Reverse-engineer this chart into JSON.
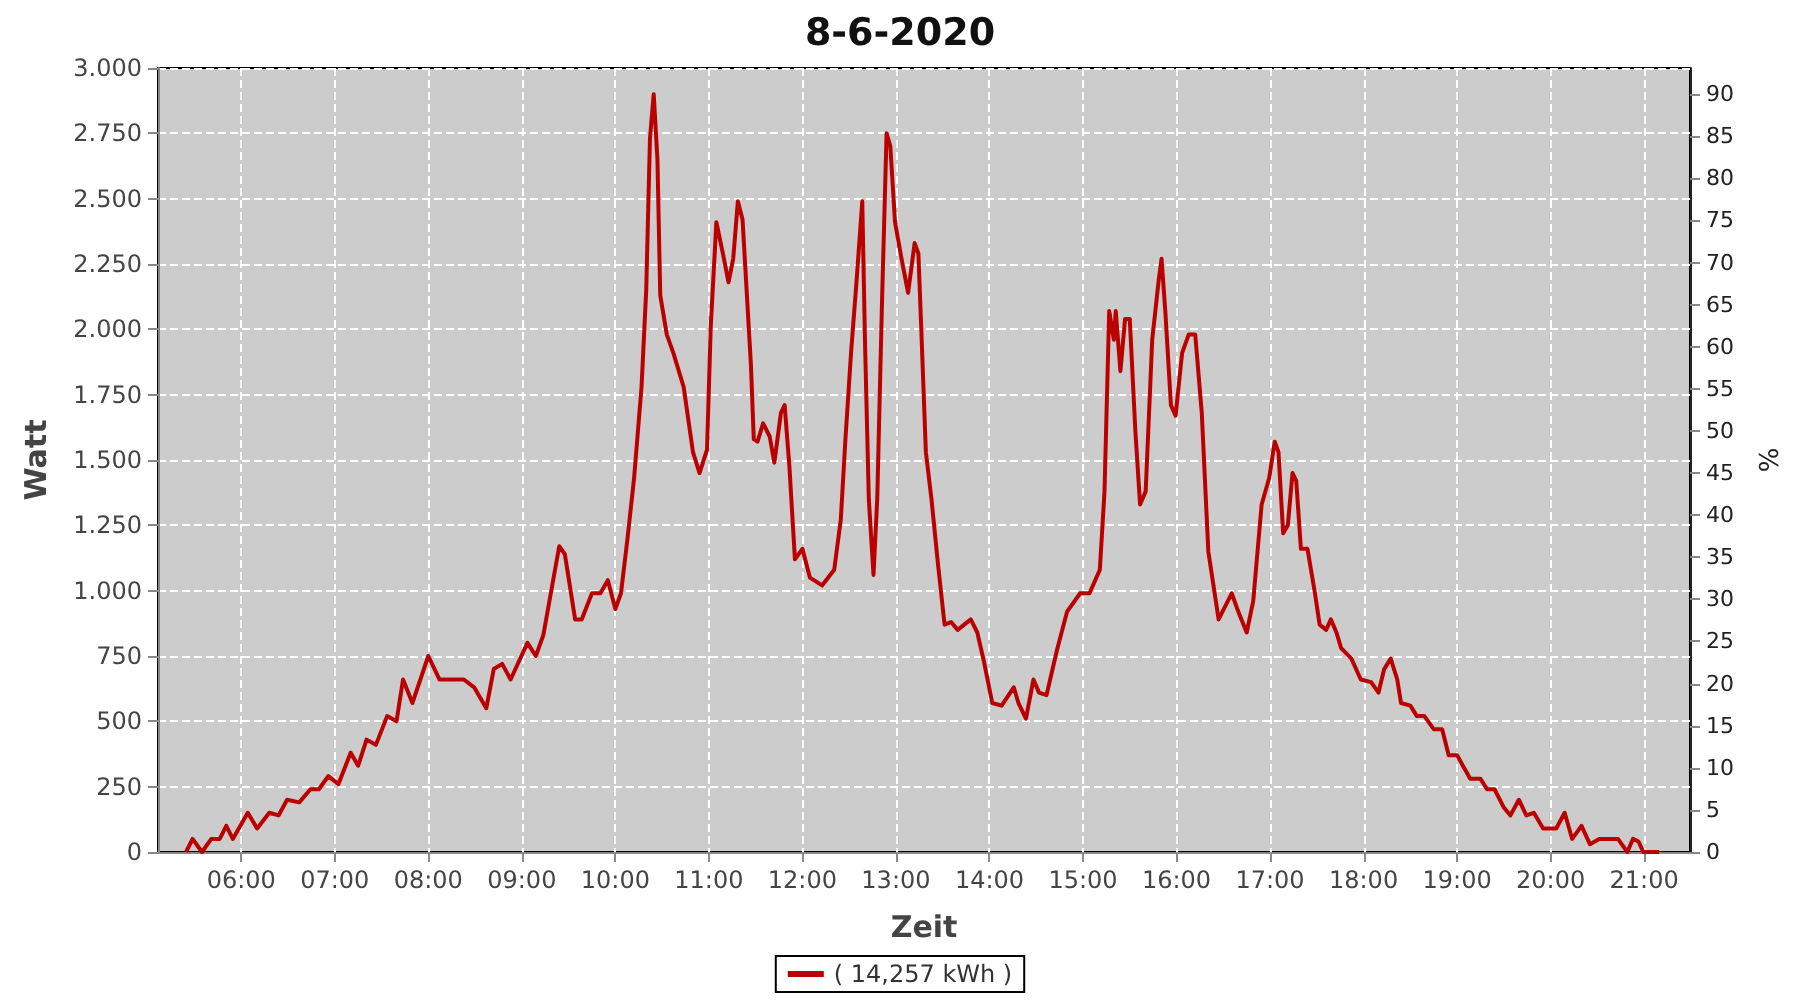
{
  "chart_data": {
    "type": "line",
    "title": "8-6-2020",
    "xlabel": "Zeit",
    "ylabel": "Watt",
    "y2label": "%",
    "xlim": [
      5.11,
      21.49
    ],
    "xticks": [
      {
        "value": 6,
        "label": "06:00"
      },
      {
        "value": 7,
        "label": "07:00"
      },
      {
        "value": 8,
        "label": "08:00"
      },
      {
        "value": 9,
        "label": "09:00"
      },
      {
        "value": 10,
        "label": "10:00"
      },
      {
        "value": 11,
        "label": "11:00"
      },
      {
        "value": 12,
        "label": "12:00"
      },
      {
        "value": 13,
        "label": "13:00"
      },
      {
        "value": 14,
        "label": "14:00"
      },
      {
        "value": 15,
        "label": "15:00"
      },
      {
        "value": 16,
        "label": "16:00"
      },
      {
        "value": 17,
        "label": "17:00"
      },
      {
        "value": 18,
        "label": "18:00"
      },
      {
        "value": 19,
        "label": "19:00"
      },
      {
        "value": 20,
        "label": "20:00"
      },
      {
        "value": 21,
        "label": "21:00"
      }
    ],
    "ylim": [
      0,
      3000
    ],
    "yticks": [
      0,
      250,
      500,
      750,
      {
        "value": 1000,
        "label": "1.000"
      },
      {
        "value": 1250,
        "label": "1.250"
      },
      {
        "value": 1500,
        "label": "1.500"
      },
      {
        "value": 1750,
        "label": "1.750"
      },
      {
        "value": 2000,
        "label": "2.000"
      },
      {
        "value": 2250,
        "label": "2.250"
      },
      {
        "value": 2500,
        "label": "2.500"
      },
      {
        "value": 2750,
        "label": "2.750"
      },
      {
        "value": 3000,
        "label": "3.000"
      }
    ],
    "y2lim": [
      0,
      93.1
    ],
    "y2ticks": [
      0,
      5,
      10,
      15,
      20,
      25,
      30,
      35,
      40,
      45,
      50,
      55,
      60,
      65,
      70,
      75,
      80,
      85,
      90
    ],
    "grid": true,
    "legend": "bottom",
    "marker": "none",
    "line_style": "solid",
    "series": [
      {
        "name": "( 14,257 kWh )",
        "color": "#bb0000",
        "x": [
          5.41,
          5.48,
          5.58,
          5.68,
          5.77,
          5.84,
          5.91,
          6.07,
          6.17,
          6.3,
          6.4,
          6.49,
          6.62,
          6.74,
          6.83,
          6.93,
          7.04,
          7.17,
          7.25,
          7.34,
          7.44,
          7.56,
          7.66,
          7.73,
          7.83,
          8.0,
          8.12,
          8.38,
          8.49,
          8.62,
          8.7,
          8.79,
          8.88,
          9.06,
          9.15,
          9.23,
          9.4,
          9.46,
          9.57,
          9.64,
          9.75,
          9.84,
          9.92,
          10.0,
          10.06,
          10.13,
          10.2,
          10.28,
          10.33,
          10.37,
          10.41,
          10.45,
          10.48,
          10.55,
          10.62,
          10.73,
          10.83,
          10.9,
          10.98,
          11.02,
          11.08,
          11.15,
          11.21,
          11.26,
          11.31,
          11.36,
          11.45,
          11.48,
          11.52,
          11.58,
          11.65,
          11.7,
          11.77,
          11.81,
          11.86,
          11.92,
          12.0,
          12.08,
          12.21,
          12.34,
          12.41,
          12.46,
          12.52,
          12.58,
          12.64,
          12.67,
          12.71,
          12.76,
          12.8,
          12.85,
          12.9,
          12.94,
          12.99,
          13.06,
          13.13,
          13.2,
          13.24,
          13.27,
          13.32,
          13.38,
          13.45,
          13.52,
          13.59,
          13.66,
          13.73,
          13.8,
          13.87,
          13.94,
          14.03,
          14.13,
          14.26,
          14.31,
          14.39,
          14.47,
          14.53,
          14.61,
          14.72,
          14.83,
          14.97,
          15.07,
          15.18,
          15.23,
          15.28,
          15.33,
          15.35,
          15.4,
          15.45,
          15.5,
          15.56,
          15.61,
          15.67,
          15.74,
          15.81,
          15.84,
          15.88,
          15.94,
          15.99,
          16.06,
          16.13,
          16.2,
          16.27,
          16.34,
          16.45,
          16.52,
          16.59,
          16.66,
          16.75,
          16.82,
          16.91,
          16.99,
          17.05,
          17.09,
          17.14,
          17.19,
          17.24,
          17.28,
          17.33,
          17.4,
          17.48,
          17.53,
          17.6,
          17.65,
          17.71,
          17.76,
          17.87,
          17.97,
          18.08,
          18.16,
          18.22,
          18.29,
          18.36,
          18.4,
          18.5,
          18.57,
          18.65,
          18.75,
          18.84,
          18.91,
          19.0,
          19.14,
          19.25,
          19.32,
          19.4,
          19.5,
          19.57,
          19.66,
          19.74,
          19.82,
          19.92,
          20.06,
          20.15,
          20.23,
          20.33,
          20.42,
          20.52,
          20.72,
          20.82,
          20.88,
          20.94,
          20.99,
          21.16
        ],
        "values": [
          0,
          50,
          0,
          50,
          50,
          100,
          50,
          150,
          90,
          150,
          140,
          200,
          190,
          240,
          240,
          290,
          260,
          380,
          330,
          430,
          410,
          520,
          500,
          660,
          570,
          750,
          660,
          660,
          630,
          550,
          700,
          720,
          660,
          800,
          750,
          830,
          1170,
          1140,
          890,
          890,
          990,
          990,
          1040,
          930,
          990,
          1200,
          1430,
          1780,
          2150,
          2730,
          2900,
          2650,
          2130,
          1980,
          1910,
          1780,
          1530,
          1450,
          1540,
          2010,
          2410,
          2290,
          2180,
          2270,
          2490,
          2420,
          1860,
          1580,
          1570,
          1640,
          1590,
          1490,
          1680,
          1710,
          1480,
          1120,
          1160,
          1050,
          1020,
          1080,
          1270,
          1580,
          1910,
          2190,
          2490,
          1940,
          1350,
          1060,
          1350,
          2090,
          2750,
          2700,
          2410,
          2270,
          2140,
          2330,
          2290,
          2010,
          1530,
          1350,
          1100,
          870,
          880,
          850,
          870,
          890,
          840,
          730,
          570,
          560,
          630,
          570,
          510,
          660,
          610,
          600,
          770,
          920,
          990,
          990,
          1080,
          1380,
          2070,
          1960,
          2070,
          1840,
          2040,
          2040,
          1610,
          1330,
          1380,
          1960,
          2190,
          2270,
          2070,
          1710,
          1670,
          1910,
          1980,
          1980,
          1680,
          1150,
          890,
          940,
          990,
          920,
          840,
          960,
          1330,
          1430,
          1570,
          1530,
          1220,
          1250,
          1450,
          1420,
          1160,
          1160,
          990,
          870,
          850,
          890,
          840,
          780,
          740,
          660,
          650,
          610,
          700,
          740,
          660,
          570,
          560,
          520,
          520,
          470,
          470,
          370,
          370,
          280,
          280,
          240,
          240,
          170,
          140,
          200,
          140,
          150,
          90,
          90,
          150,
          50,
          100,
          30,
          50,
          50,
          0,
          50,
          40,
          0,
          0
        ]
      }
    ]
  }
}
